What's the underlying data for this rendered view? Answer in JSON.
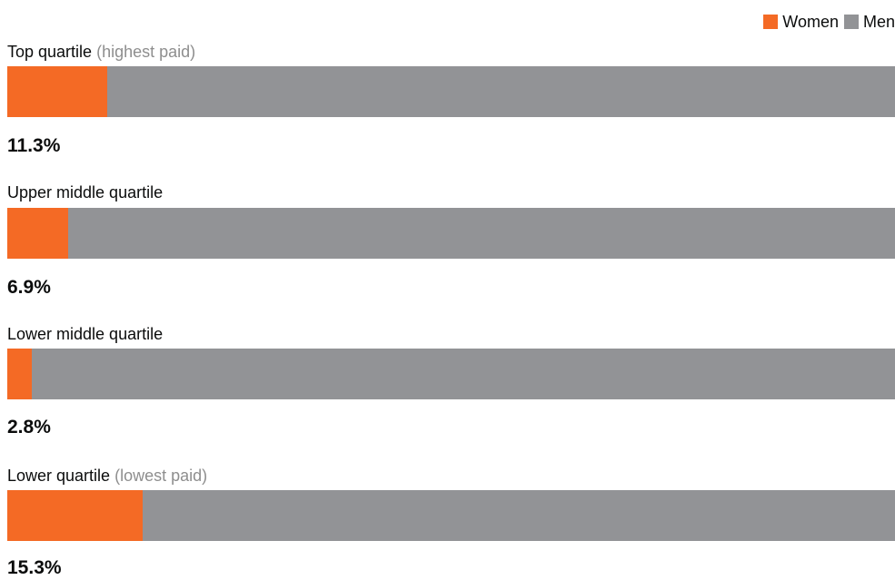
{
  "legend": {
    "women_label": "Women",
    "men_label": "Men"
  },
  "colors": {
    "women": "#f46a25",
    "men": "#929396"
  },
  "chart_data": {
    "type": "bar",
    "stacked": true,
    "orientation": "horizontal",
    "categories": [
      "Top quartile (highest paid)",
      "Upper middle quartile",
      "Lower middle quartile",
      "Lower quartile (lowest paid)"
    ],
    "series": [
      {
        "name": "Women",
        "values": [
          11.3,
          6.9,
          2.8,
          15.3
        ]
      },
      {
        "name": "Men",
        "values": [
          88.7,
          93.1,
          97.2,
          84.7
        ]
      }
    ],
    "legend_position": "top-right",
    "grid": false,
    "xlim": [
      0,
      100
    ]
  },
  "quartiles": [
    {
      "label": "Top quartile",
      "note": "(highest paid)",
      "women_pct": 11.3,
      "pct_label": "11.3%"
    },
    {
      "label": "Upper middle quartile",
      "note": "",
      "women_pct": 6.9,
      "pct_label": "6.9%"
    },
    {
      "label": "Lower middle quartile",
      "note": "",
      "women_pct": 2.8,
      "pct_label": "2.8%"
    },
    {
      "label": "Lower quartile",
      "note": "(lowest paid)",
      "women_pct": 15.3,
      "pct_label": "15.3%"
    }
  ]
}
